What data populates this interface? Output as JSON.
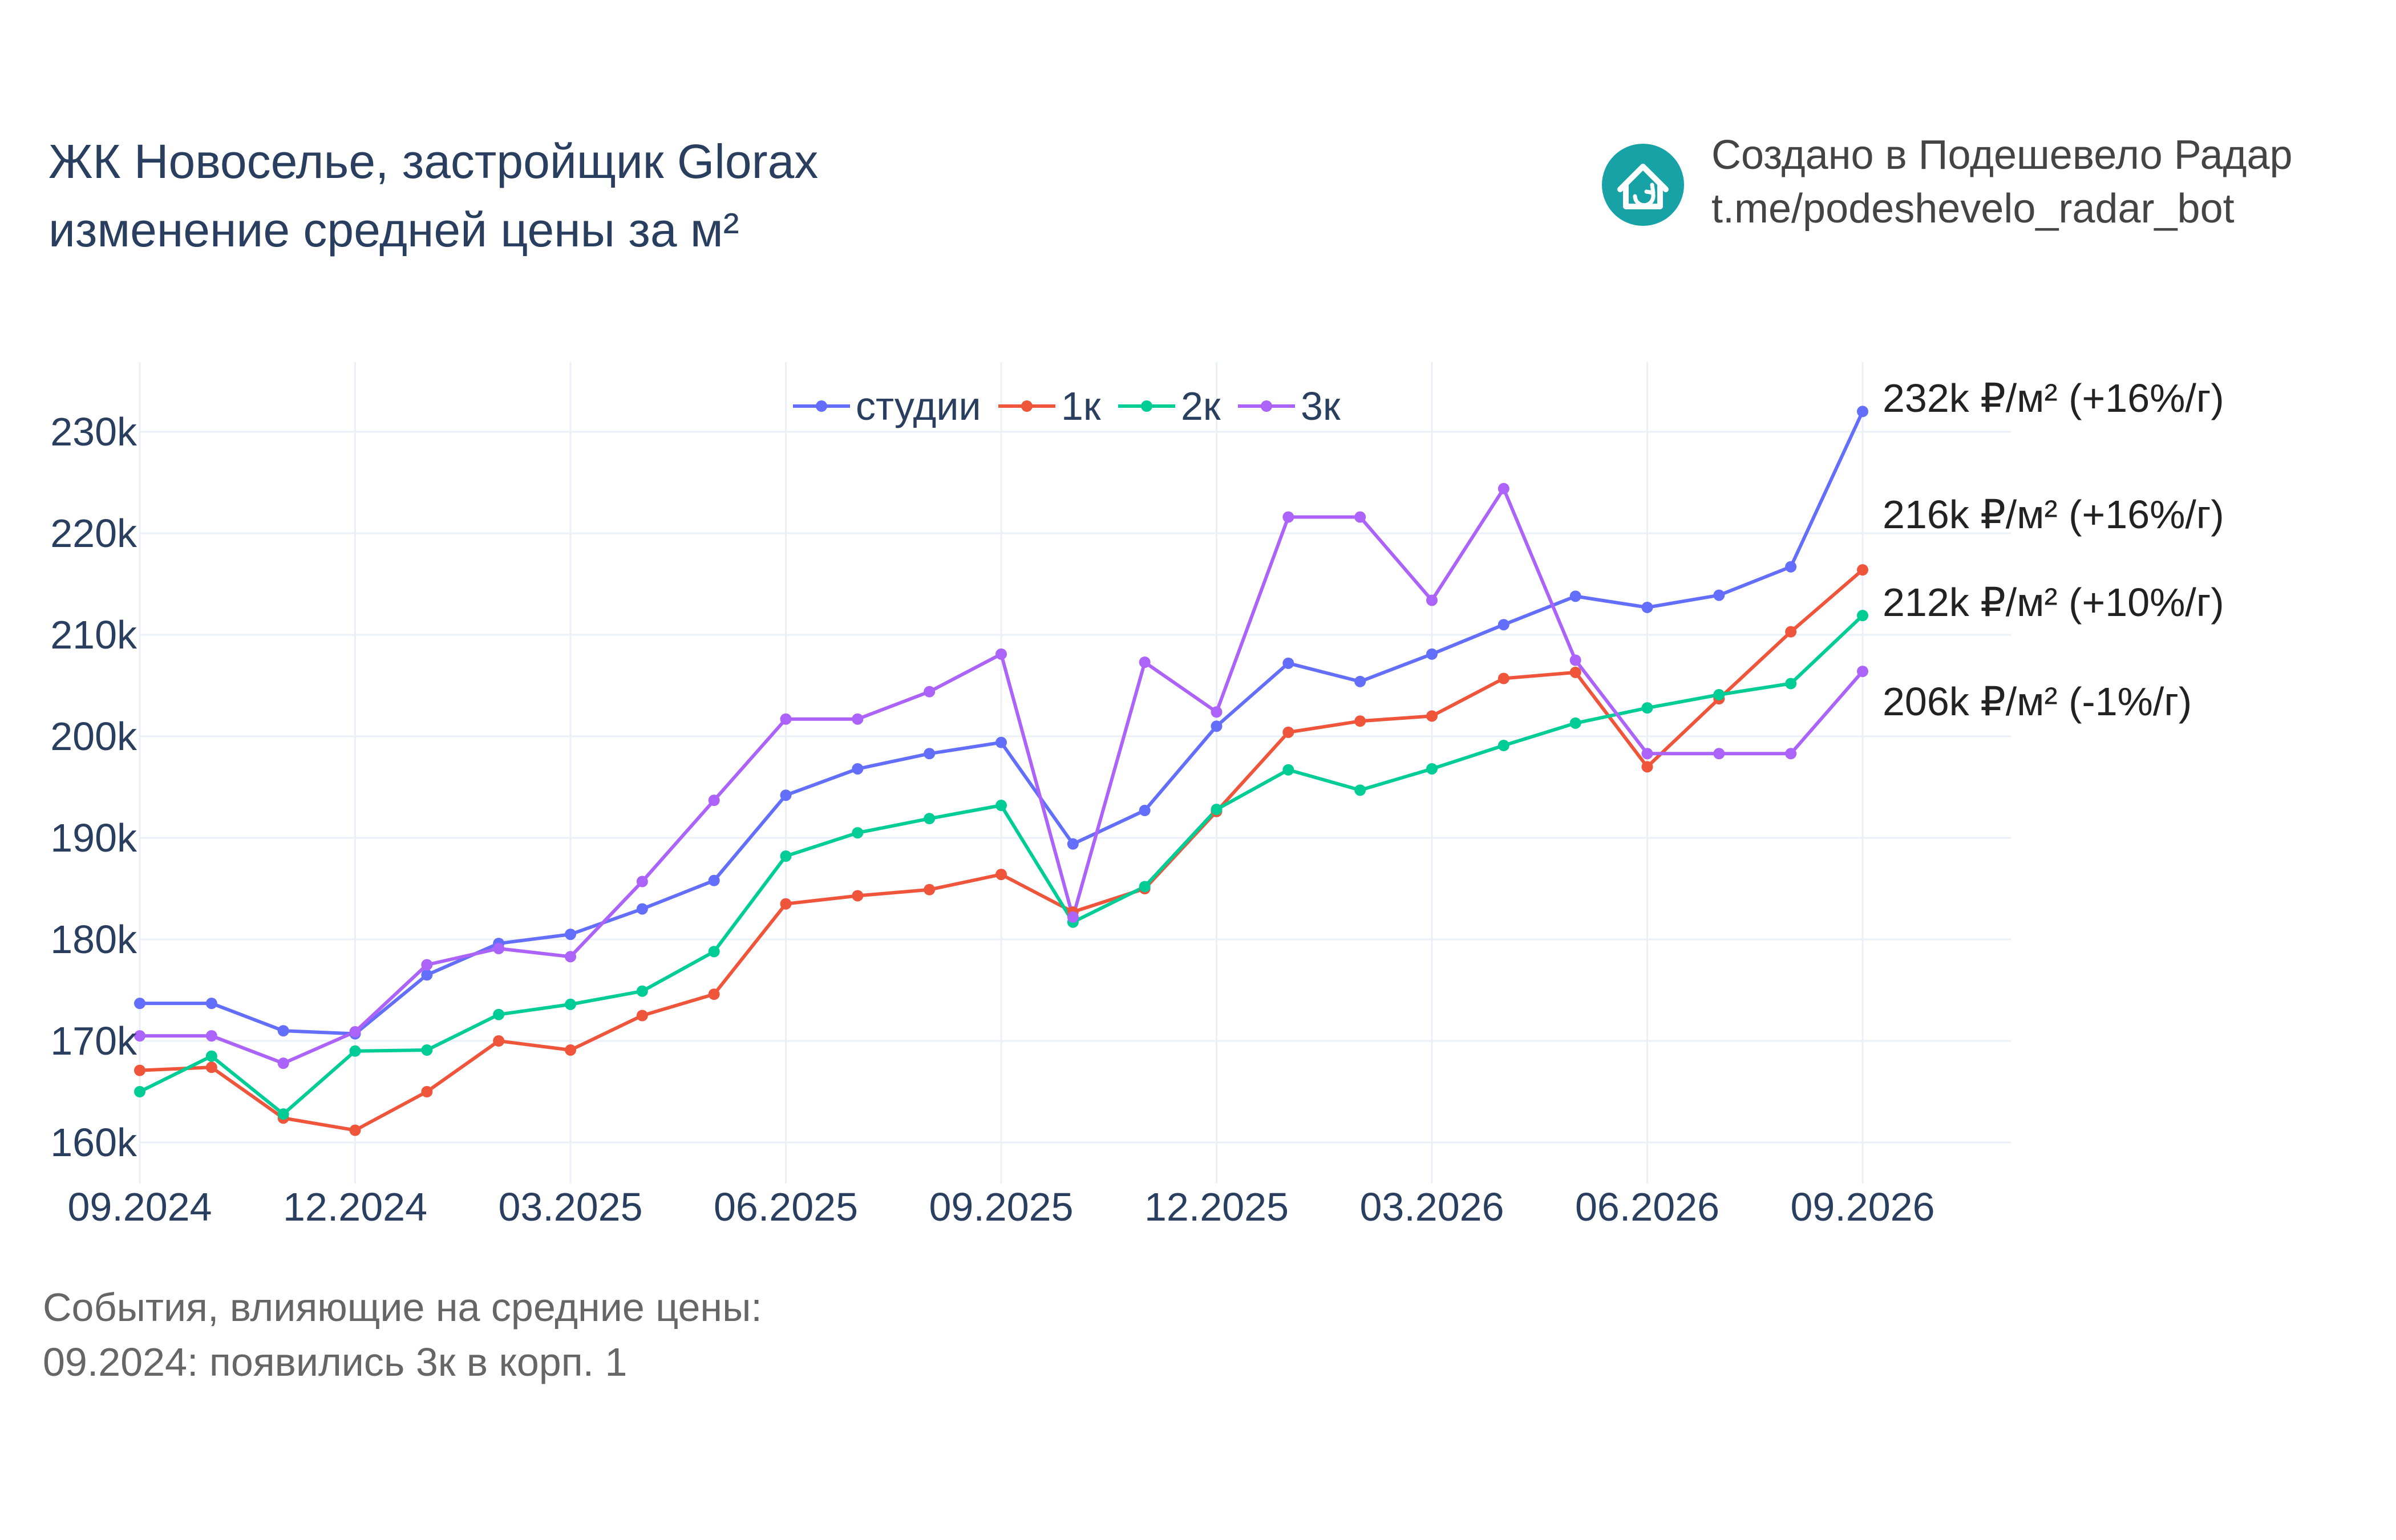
{
  "header": {
    "title_line1": "ЖК Новоселье, застройщик Glorax",
    "title_line2": "изменение средней цены за м²",
    "credit_line1": "Создано в Подешевело Радар",
    "credit_line2": "t.me/podeshevelo_radar_bot",
    "logo_icon": "house-refresh-icon",
    "logo_color": "#17a2a6"
  },
  "events": {
    "heading": "События, влияющие на средние цены:",
    "items": [
      "09.2024: появились 3к в корп. 1"
    ]
  },
  "chart_data": {
    "type": "line",
    "x": [
      "09.2024",
      "10.2024",
      "11.2024",
      "12.2024",
      "01.2025",
      "02.2025",
      "03.2025",
      "04.2025",
      "05.2025",
      "06.2025",
      "07.2025",
      "08.2025",
      "09.2025",
      "10.2025",
      "11.2025",
      "12.2025",
      "01.2026",
      "02.2026",
      "03.2026",
      "04.2026",
      "05.2026",
      "06.2026",
      "07.2026",
      "08.2026",
      "09.2026"
    ],
    "x_tick_labels": [
      "09.2024",
      "12.2024",
      "03.2025",
      "06.2025",
      "09.2025",
      "12.2025",
      "03.2026",
      "06.2026",
      "09.2026"
    ],
    "y_tick_values": [
      160000,
      170000,
      180000,
      190000,
      200000,
      210000,
      220000,
      230000
    ],
    "y_tick_labels": [
      "160k",
      "170k",
      "180k",
      "190k",
      "200k",
      "210k",
      "220k",
      "230k"
    ],
    "ylim": [
      157000,
      235000
    ],
    "grid": true,
    "legend_position": "top-center",
    "series": [
      {
        "name": "студии",
        "color": "#636efa",
        "values": [
          173700,
          173700,
          171000,
          170700,
          176500,
          179600,
          180500,
          183000,
          185800,
          194200,
          196800,
          198300,
          199400,
          189400,
          192700,
          201000,
          207200,
          205400,
          208100,
          211000,
          213800,
          212700,
          213900,
          216700,
          232000
        ],
        "end_label": "232k ₽/м² (+16%/г)"
      },
      {
        "name": "1к",
        "color": "#ef553b",
        "values": [
          167100,
          167400,
          162400,
          161200,
          165000,
          170000,
          169100,
          172500,
          174600,
          183500,
          184300,
          184900,
          186400,
          182700,
          185000,
          192600,
          200400,
          201500,
          202000,
          205700,
          206300,
          197000,
          203700,
          210300,
          216400
        ],
        "end_label": "216k ₽/м² (+16%/г)"
      },
      {
        "name": "2к",
        "color": "#00cc96",
        "values": [
          165000,
          168500,
          162800,
          169000,
          169100,
          172600,
          173600,
          174900,
          178800,
          188200,
          190500,
          191900,
          193200,
          181700,
          185200,
          192800,
          196700,
          194700,
          196800,
          199100,
          201300,
          202800,
          204100,
          205200,
          211900
        ],
        "end_label": "212k ₽/м² (+10%/г)"
      },
      {
        "name": "3к",
        "color": "#ab63fa",
        "values": [
          170500,
          170500,
          167800,
          170900,
          177500,
          179100,
          178300,
          185700,
          193700,
          201700,
          201700,
          204400,
          208100,
          182200,
          207300,
          202400,
          221600,
          221600,
          213400,
          224400,
          207500,
          198300,
          198300,
          198300,
          206400
        ],
        "end_label": "206k ₽/м² (-1%/г)"
      }
    ]
  }
}
